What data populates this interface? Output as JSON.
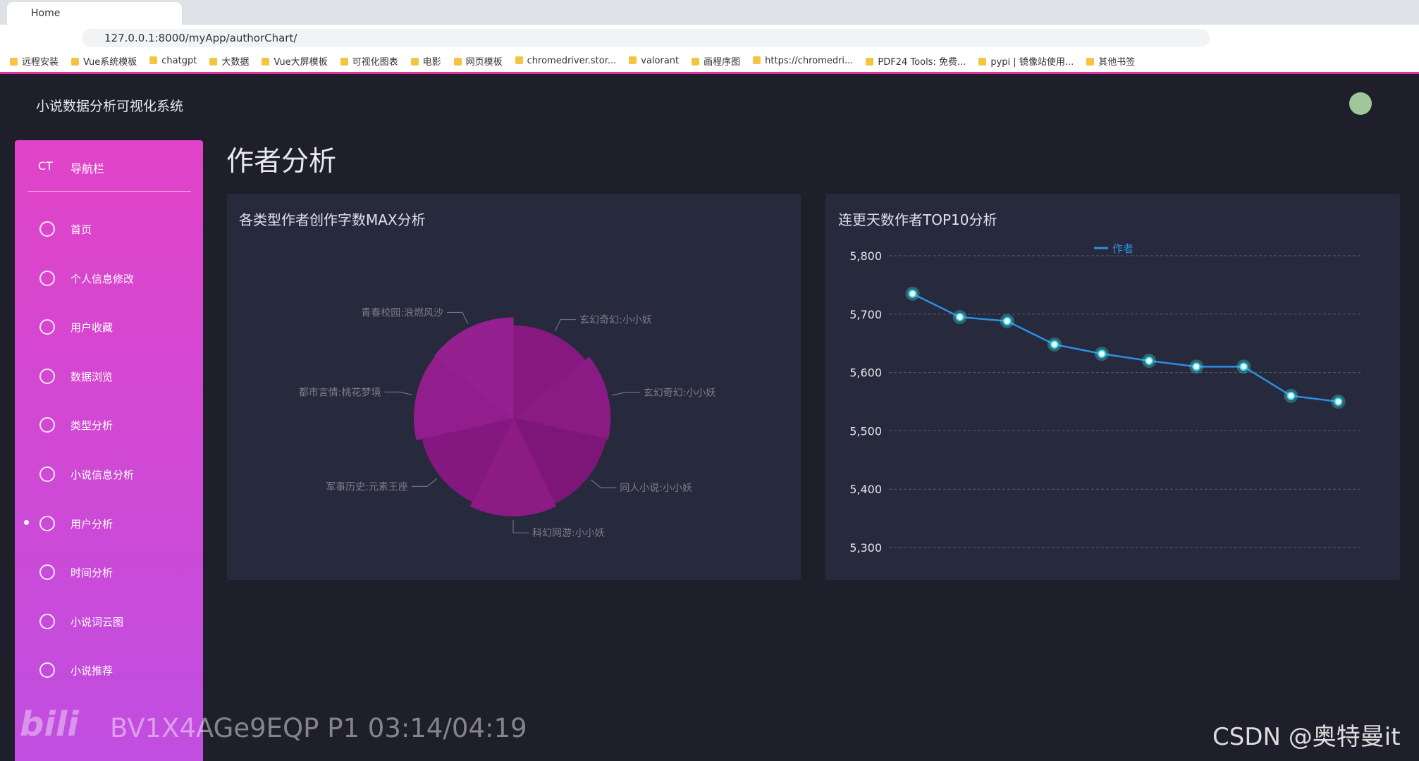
{
  "browser": {
    "tab": "Home",
    "url": "127.0.0.1:8000/myApp/authorChart/",
    "bookmarks": [
      "远程安装",
      "Vue系统模板",
      "chatgpt",
      "大数据",
      "Vue大屏模板",
      "可视化图表",
      "电影",
      "网页模板",
      "chromedriver.stor...",
      "valorant",
      "画程序图",
      "https://chromedri...",
      "PDF24 Tools: 免费...",
      "pypi | 镜像站使用...",
      "其他书签"
    ]
  },
  "header": {
    "title": "小说数据分析可视化系统"
  },
  "sidebar": {
    "brand": "CT",
    "title": "导航栏",
    "items": [
      "首页",
      "个人信息修改",
      "用户收藏",
      "数据浏览",
      "类型分析",
      "小说信息分析",
      "用户分析",
      "时间分析",
      "小说词云图",
      "小说推荐"
    ]
  },
  "page": {
    "title": "作者分析"
  },
  "chart_data": [
    {
      "type": "pie",
      "title": "各类型作者创作字数MAX分析",
      "categories": [
        "玄幻奇幻:小小妖",
        "玄幻奇幻:小小妖",
        "同人小说:小小妖",
        "科幻网游:小小妖",
        "军事历史:元素王座",
        "都市言情:桃花梦境",
        "青春校园:浪燃风沙"
      ],
      "values": [
        4650000,
        4900000,
        4800000,
        4950000,
        4700000,
        5000000,
        5050000
      ],
      "colors": [
        "#86187f",
        "#8a1a84",
        "#7e1679",
        "#8c1b86",
        "#841880",
        "#921d8c",
        "#95208f"
      ]
    },
    {
      "type": "line",
      "title": "连更天数作者TOP10分析",
      "categories": [
        null,
        null,
        null,
        null,
        null,
        null,
        null,
        null,
        null,
        null
      ],
      "series": [
        {
          "name": "作者",
          "color": "#2b8fe6",
          "values": [
            5735,
            5695,
            5688,
            5648,
            5632,
            5620,
            5610,
            5610,
            5560,
            5550
          ]
        }
      ],
      "ylim": [
        5300,
        5800
      ],
      "yticks": [
        {
          "value": 5300,
          "label": "5,300"
        },
        {
          "value": 5400,
          "label": "5,400"
        },
        {
          "value": 5500,
          "label": "5,500"
        },
        {
          "value": 5600,
          "label": "5,600"
        },
        {
          "value": 5700,
          "label": "5,700"
        },
        {
          "value": 5800,
          "label": "5,800"
        }
      ],
      "grid": true,
      "legend": "top"
    }
  ],
  "overlay": {
    "video": "BV1X4AGe9EQP P1 03:14/04:19",
    "watermark": "CSDN @奥特曼it"
  }
}
